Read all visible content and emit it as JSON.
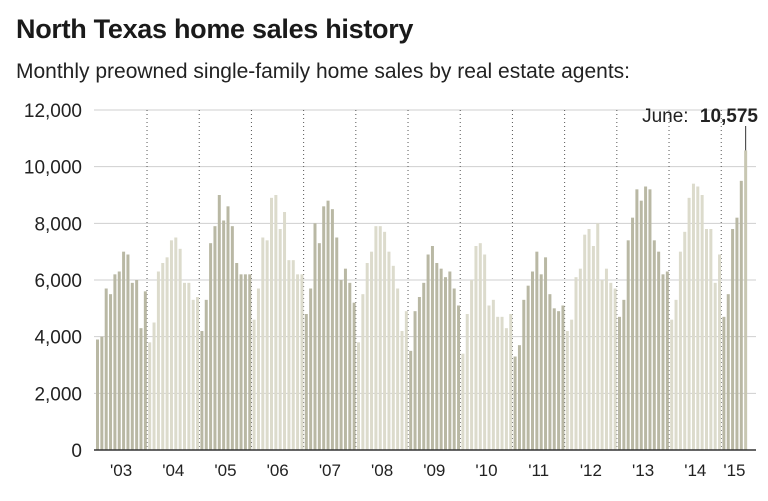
{
  "title": "North Texas home sales history",
  "subtitle": "Monthly preowned single-family home sales by real estate agents:",
  "annotation": {
    "label": "June:",
    "value": "10,575"
  },
  "colors": {
    "dark_bar": "#b9b8a4",
    "light_bar": "#dcdbcc",
    "highlight_bar": "#c8c7b2",
    "axis": "#333333",
    "grid": "#cfcfcf"
  },
  "chart_data": {
    "type": "bar",
    "ylim": [
      0,
      12000
    ],
    "yticks": [
      "0",
      "2,000",
      "4,000",
      "6,000",
      "8,000",
      "10,000",
      "12,000"
    ],
    "ytick_values": [
      0,
      2000,
      4000,
      6000,
      8000,
      10000,
      12000
    ],
    "grid": true,
    "years": [
      {
        "label": "'03",
        "values": [
          3900,
          4000,
          5700,
          5500,
          6200,
          6300,
          7000,
          6900,
          5900,
          6000,
          4300,
          5600
        ]
      },
      {
        "label": "'04",
        "values": [
          3800,
          4500,
          6300,
          6600,
          6800,
          7400,
          7500,
          7100,
          5900,
          5900,
          5300,
          5400
        ]
      },
      {
        "label": "'05",
        "values": [
          4200,
          5300,
          7300,
          7900,
          9000,
          8100,
          8600,
          7900,
          6600,
          6200,
          6200,
          6200
        ]
      },
      {
        "label": "'06",
        "values": [
          4600,
          5700,
          7500,
          7400,
          8900,
          9000,
          7800,
          8400,
          6700,
          6700,
          6200,
          6200
        ]
      },
      {
        "label": "'07",
        "values": [
          4800,
          5700,
          8000,
          7300,
          8600,
          8800,
          8500,
          7500,
          6000,
          6400,
          5900,
          5200
        ]
      },
      {
        "label": "'08",
        "values": [
          3800,
          5500,
          6600,
          7000,
          7900,
          7900,
          7700,
          7000,
          6500,
          5700,
          4200,
          4900
        ]
      },
      {
        "label": "'09",
        "values": [
          3500,
          4900,
          5400,
          5900,
          6900,
          7200,
          6600,
          6400,
          6100,
          6300,
          5700,
          5100
        ]
      },
      {
        "label": "'10",
        "values": [
          3400,
          4800,
          6000,
          7200,
          7300,
          6900,
          5100,
          5300,
          4700,
          4700,
          4300,
          4800
        ]
      },
      {
        "label": "'11",
        "values": [
          3300,
          3700,
          5300,
          5800,
          6300,
          7000,
          6200,
          6800,
          5500,
          5000,
          4900,
          5100
        ]
      },
      {
        "label": "'12",
        "values": [
          4200,
          4600,
          6100,
          6400,
          7600,
          7800,
          7200,
          8000,
          6000,
          6400,
          5900,
          5700
        ]
      },
      {
        "label": "'13",
        "values": [
          4700,
          5300,
          7400,
          8200,
          9200,
          8800,
          9300,
          9200,
          7400,
          7000,
          6200,
          6300
        ]
      },
      {
        "label": "'14",
        "values": [
          4600,
          5300,
          7000,
          7700,
          8900,
          9400,
          9300,
          9000,
          7800,
          7800,
          5900,
          6900
        ]
      },
      {
        "label": "'15",
        "values": [
          4700,
          5500,
          7800,
          8200,
          9500,
          10575
        ]
      }
    ]
  }
}
